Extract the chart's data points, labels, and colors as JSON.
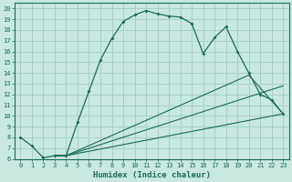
{
  "xlabel": "Humidex (Indice chaleur)",
  "background_color": "#c8e8e0",
  "grid_color": "#a8d0c8",
  "line_color": "#1a6b5a",
  "xlim": [
    -0.5,
    23.5
  ],
  "ylim": [
    6,
    20.5
  ],
  "xticks": [
    0,
    1,
    2,
    3,
    4,
    5,
    6,
    7,
    8,
    9,
    10,
    11,
    12,
    13,
    14,
    15,
    16,
    17,
    18,
    19,
    20,
    21,
    22,
    23
  ],
  "yticks": [
    6,
    7,
    8,
    9,
    10,
    11,
    12,
    13,
    14,
    15,
    16,
    17,
    18,
    19,
    20
  ],
  "line1_x": [
    0,
    1,
    2,
    3,
    4,
    5,
    6,
    7,
    8,
    9,
    10,
    11,
    12,
    13,
    14,
    15,
    16,
    17,
    18,
    19,
    20,
    21,
    22,
    23
  ],
  "line1_y": [
    8.0,
    7.2,
    6.1,
    6.3,
    6.3,
    9.4,
    12.3,
    15.2,
    17.2,
    18.8,
    19.4,
    19.8,
    19.5,
    19.3,
    19.2,
    18.6,
    15.8,
    17.3,
    18.3,
    16.0,
    14.0,
    12.0,
    11.5,
    10.2
  ],
  "line2_x": [
    3,
    4,
    23
  ],
  "line2_y": [
    6.3,
    6.3,
    10.2
  ],
  "line3_x": [
    3,
    4,
    23
  ],
  "line3_y": [
    6.3,
    6.3,
    12.8
  ],
  "line4_x": [
    3,
    4,
    20,
    23
  ],
  "line4_y": [
    6.3,
    6.3,
    13.8,
    10.2
  ]
}
